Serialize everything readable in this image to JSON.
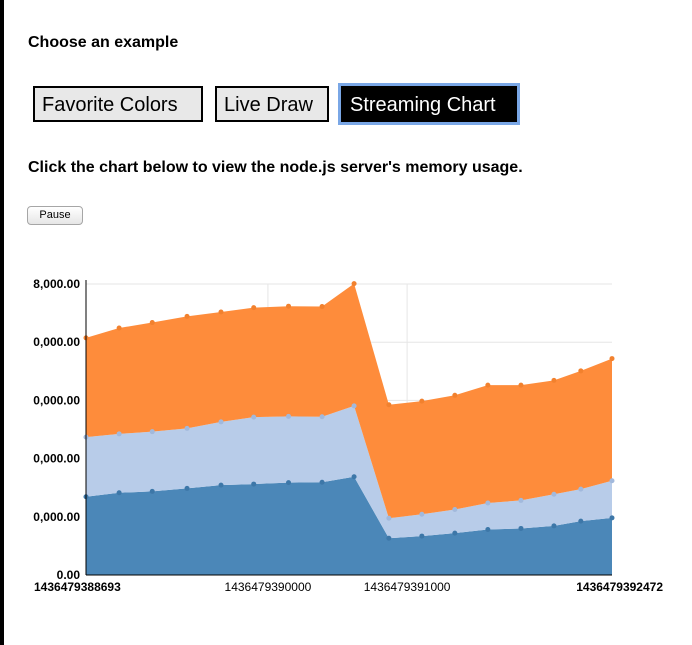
{
  "heading": "Choose an example",
  "tabs": [
    {
      "label": "Favorite Colors",
      "active": false
    },
    {
      "label": "Live Draw",
      "active": false
    },
    {
      "label": "Streaming Chart",
      "active": true
    }
  ],
  "instructions": "Click the chart below to view the node.js server's memory usage.",
  "pause_label": "Pause",
  "colors": {
    "series1": "#4b87b8",
    "series2": "#b8cce9",
    "series3": "#fe8c3b"
  },
  "chart_data": {
    "type": "area",
    "stacked": true,
    "ylim": [
      0,
      8000
    ],
    "y_tick_labels": [
      "8,000.00",
      "0,000.00",
      "0,000.00",
      "0,000.00",
      "0,000.00",
      "0.00"
    ],
    "x_tick_labels": [
      {
        "x": 1436479388693,
        "label": "1436479388693",
        "bold": true
      },
      {
        "x": 1436479390000,
        "label": "1436479390000",
        "bold": false
      },
      {
        "x": 1436479391000,
        "label": "1436479391000",
        "bold": false
      },
      {
        "x": 1436479392472,
        "label": "1436479392472",
        "bold": true
      }
    ],
    "xlim": [
      1436479388693,
      1436479392472
    ],
    "x": [
      1436479388693,
      1436479388931,
      1436479389169,
      1436479389419,
      1436479389663,
      1436479389898,
      1436479390148,
      1436479390389,
      1436479390619,
      1436479390869,
      1436479391106,
      1436479391343,
      1436479391580,
      1436479391818,
      1436479392055,
      1436479392248,
      1436479392472
    ],
    "series": [
      {
        "values": [
          2150,
          2260,
          2300,
          2380,
          2470,
          2500,
          2540,
          2550,
          2700,
          1010,
          1070,
          1150,
          1250,
          1280,
          1350,
          1480,
          1570
        ]
      },
      {
        "values": [
          1640,
          1620,
          1640,
          1650,
          1740,
          1840,
          1820,
          1800,
          1950,
          550,
          600,
          650,
          730,
          770,
          870,
          880,
          1020
        ]
      },
      {
        "values": [
          2730,
          2910,
          3000,
          3080,
          3020,
          3010,
          3030,
          3030,
          3360,
          3120,
          3110,
          3140,
          3240,
          3170,
          3130,
          3250,
          3360
        ]
      }
    ]
  }
}
